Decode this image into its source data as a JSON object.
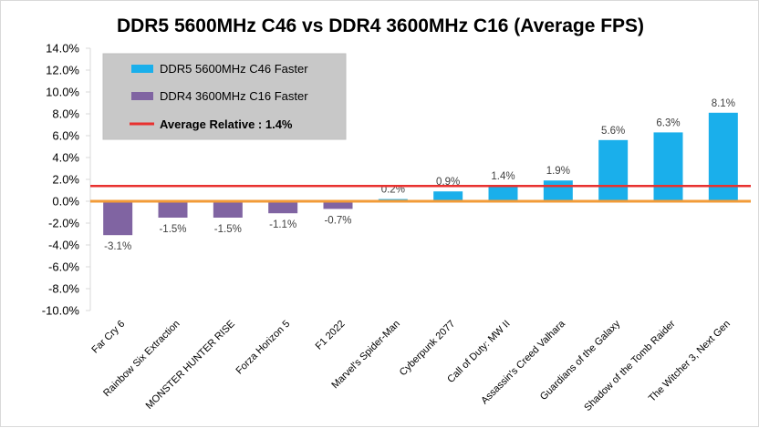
{
  "chart_data": {
    "type": "bar",
    "title": "DDR5 5600MHz C46 vs DDR4 3600MHz C16 (Average FPS)",
    "xlabel": "",
    "ylabel": "",
    "ylim": [
      -10,
      14
    ],
    "y_ticks": [
      "14.0%",
      "12.0%",
      "10.0%",
      "8.0%",
      "6.0%",
      "4.0%",
      "2.0%",
      "0.0%",
      "-2.0%",
      "-4.0%",
      "-6.0%",
      "-8.0%",
      "-10.0%"
    ],
    "y_tick_values": [
      14,
      12,
      10,
      8,
      6,
      4,
      2,
      0,
      -2,
      -4,
      -6,
      -8,
      -10
    ],
    "categories": [
      "Far Cry 6",
      "Rainbow Six Extraction",
      "MONSTER HUNTER RISE",
      "Forza Horizon 5",
      "F1 2022",
      "Marvel's Spider-Man",
      "Cyberpunk 2077",
      "Call of Duty: MW II",
      "Assassin's Creed Valhara",
      "Guardians of the Galaxy",
      "Shadow of the Tomb Raider",
      "The Witcher 3, Next Gen"
    ],
    "values": [
      -3.1,
      -1.5,
      -1.5,
      -1.1,
      -0.7,
      0.2,
      0.9,
      1.4,
      1.9,
      5.6,
      6.3,
      8.1
    ],
    "value_labels": [
      "-3.1%",
      "-1.5%",
      "-1.5%",
      "-1.1%",
      "-0.7%",
      "0.2%",
      "0.9%",
      "1.4%",
      "1.9%",
      "5.6%",
      "6.3%",
      "8.1%"
    ],
    "series": [
      {
        "name": "DDR5 5600MHz C46 Faster",
        "color": "#1aafeb"
      },
      {
        "name": "DDR4 3600MHz C16 Faster",
        "color": "#8064a2"
      }
    ],
    "average": {
      "label": "Average Relative : 1.4%",
      "value": 1.4,
      "color": "#e8312f"
    },
    "zero_line_color": "#f29b38",
    "legend_position": "top-left",
    "grid": false
  }
}
